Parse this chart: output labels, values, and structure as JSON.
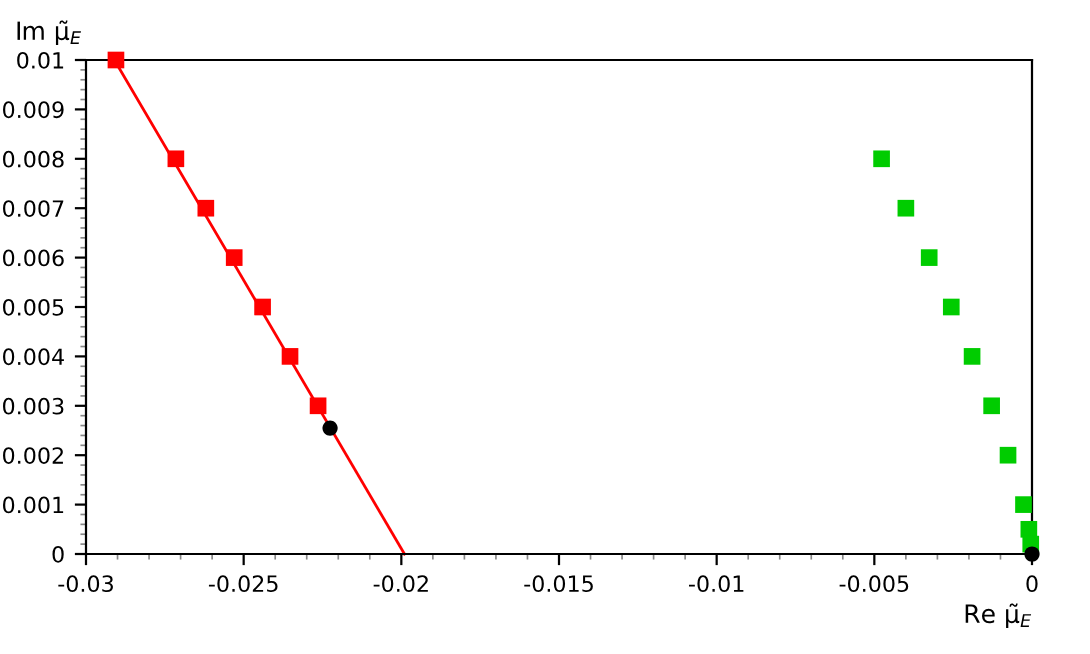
{
  "chart_data": {
    "type": "scatter",
    "xlabel": "Re μ̃$_{E}$",
    "ylabel": "Im μ̃$_{E}$",
    "xlim": [
      -0.03,
      0
    ],
    "ylim": [
      0,
      0.01
    ],
    "xticks": [
      -0.03,
      -0.025,
      -0.02,
      -0.015,
      -0.01,
      -0.005,
      0
    ],
    "yticks": [
      0,
      0.001,
      0.002,
      0.003,
      0.004,
      0.005,
      0.006,
      0.007,
      0.008,
      0.009,
      0.01
    ],
    "grid": false,
    "legend": false,
    "series": [
      {
        "type": "line",
        "color": "#ff0000",
        "marker": "none",
        "line_style": "solid",
        "x": [
          -0.0291,
          -0.0199
        ],
        "values": [
          0.01,
          0
        ]
      },
      {
        "color": "#ff0000",
        "marker": "square",
        "x": [
          -0.02905,
          -0.02715,
          -0.0262,
          -0.0253,
          -0.0244,
          -0.02353,
          -0.02264
        ],
        "values": [
          0.01,
          0.008,
          0.007,
          0.006,
          0.005,
          0.004,
          0.003
        ]
      },
      {
        "color": "#00cc00",
        "marker": "square",
        "x": [
          -0.00477,
          -0.004,
          -0.00326,
          -0.00256,
          -0.0019,
          -0.00128,
          -0.00076,
          -0.00027,
          -0.0001,
          -4e-05
        ],
        "values": [
          0.008,
          0.007,
          0.006,
          0.005,
          0.004,
          0.003,
          0.002,
          0.001,
          0.0005,
          0.0002
        ]
      },
      {
        "color": "#000000",
        "marker": "circle",
        "x": [
          -0.02226,
          0
        ],
        "values": [
          0.00255,
          0
        ]
      }
    ]
  }
}
